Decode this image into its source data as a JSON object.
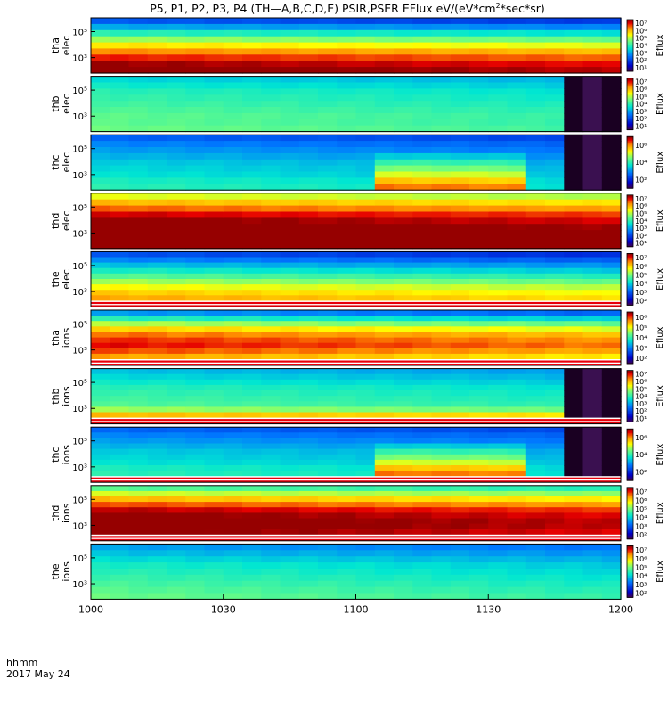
{
  "chart_data": {
    "type": "heatmap",
    "title": "P5, P1, P2, P3, P4 (TH-A,B,C,D,E) PSIR,PSER EFlux eV/(eV*cm²*sec*sr)",
    "title_parts": {
      "prefix": "P5, P1, P2, P3, P4 (TH—A,B,C,D,E) PSIR,PSER EFlux eV/(eV*cm",
      "superscript": "2",
      "suffix": "*sec*sr)"
    },
    "x_axis": {
      "label_line1": "hhmm",
      "label_line2": "2017 May 24",
      "tick_labels": [
        "1000",
        "1030",
        "1100",
        "1130",
        "1200"
      ],
      "range": [
        "10:00",
        "12:00"
      ]
    },
    "colorbar_label": "Eflux",
    "y_scale": "log",
    "panels": [
      {
        "name": "tha elec",
        "line1": "tha",
        "line2": "elec",
        "yticks": [
          "10³",
          "10⁵"
        ],
        "cbar_ticks": [
          "10¹",
          "10²",
          "10³",
          "10⁴",
          "10⁵",
          "10⁶",
          "10⁷"
        ],
        "cbar_range": [
          1,
          7
        ],
        "levels": [
          2.5,
          3.2,
          4.0,
          4.8,
          5.5,
          6.1,
          6.6,
          7.0,
          7.2
        ],
        "dim_after": 1.0,
        "gaps": false
      },
      {
        "name": "thb elec",
        "line1": "thb",
        "line2": "elec",
        "yticks": [
          "10³",
          "10⁵"
        ],
        "cbar_ticks": [
          "10¹",
          "10²",
          "10³",
          "10⁴",
          "10⁵",
          "10⁶",
          "10⁷"
        ],
        "cbar_range": [
          1,
          7
        ],
        "levels": [
          3.6,
          3.8,
          4.0,
          4.1,
          4.2,
          4.3,
          4.4,
          4.4,
          4.5
        ],
        "dim_after": 0.86,
        "gaps": false
      },
      {
        "name": "thc elec",
        "line1": "thc",
        "line2": "elec",
        "yticks": [
          "10³",
          "10⁵"
        ],
        "cbar_ticks": [
          "10²",
          "10⁴",
          "10⁶"
        ],
        "cbar_range": [
          1,
          7
        ],
        "levels": [
          2.6,
          2.9,
          3.1,
          3.3,
          3.5,
          3.6,
          3.7,
          3.9,
          4.0
        ],
        "dim_after": 0.88,
        "gaps": false,
        "bump": [
          0.51,
          0.8,
          2.4
        ]
      },
      {
        "name": "thd elec",
        "line1": "thd",
        "line2": "elec",
        "yticks": [
          "10³",
          "10⁵"
        ],
        "cbar_ticks": [
          "10¹",
          "10²",
          "10³",
          "10⁴",
          "10⁵",
          "10⁶",
          "10⁷"
        ],
        "cbar_range": [
          1,
          7
        ],
        "levels": [
          5.2,
          5.8,
          6.3,
          6.8,
          7.1,
          7.3,
          7.4,
          7.4,
          7.4
        ],
        "dim_after": 1.0,
        "gaps": false
      },
      {
        "name": "the elec",
        "line1": "the",
        "line2": "elec",
        "yticks": [
          "10³",
          "10⁵"
        ],
        "cbar_ticks": [
          "10²",
          "10³",
          "10⁴",
          "10⁵",
          "10⁶",
          "10⁷"
        ],
        "cbar_range": [
          2,
          7
        ],
        "levels": [
          3.2,
          3.6,
          4.0,
          4.4,
          4.8,
          5.2,
          5.6,
          5.9,
          6.1
        ],
        "dim_after": 1.0,
        "gaps": true
      },
      {
        "name": "tha ions",
        "line1": "tha",
        "line2": "ions",
        "yticks": [
          "10³",
          "10⁵"
        ],
        "cbar_ticks": [
          "10²",
          "10³",
          "10⁴",
          "10⁵",
          "10⁶"
        ],
        "cbar_range": [
          2,
          6
        ],
        "levels": [
          3.4,
          4.0,
          4.6,
          5.1,
          5.5,
          5.7,
          5.8,
          5.6,
          5.3
        ],
        "dim_after": 1.0,
        "gaps": true
      },
      {
        "name": "thb ions",
        "line1": "thb",
        "line2": "ions",
        "yticks": [
          "10³",
          "10⁵"
        ],
        "cbar_ticks": [
          "10¹",
          "10²",
          "10³",
          "10⁴",
          "10⁵",
          "10⁶",
          "10⁷"
        ],
        "cbar_range": [
          1,
          7
        ],
        "levels": [
          3.4,
          3.6,
          3.8,
          4.0,
          4.1,
          4.2,
          4.3,
          4.8,
          5.8
        ],
        "dim_after": 0.86,
        "gaps": true
      },
      {
        "name": "thc ions",
        "line1": "thc",
        "line2": "ions",
        "yticks": [
          "10³",
          "10⁵"
        ],
        "cbar_ticks": [
          "10²",
          "10⁴",
          "10⁶"
        ],
        "cbar_range": [
          1,
          7
        ],
        "levels": [
          2.6,
          2.9,
          3.1,
          3.3,
          3.5,
          3.6,
          3.7,
          3.9,
          4.0
        ],
        "dim_after": 0.88,
        "gaps": true,
        "bump": [
          0.51,
          0.8,
          2.4
        ]
      },
      {
        "name": "thd ions",
        "line1": "thd",
        "line2": "ions",
        "yticks": [
          "10³",
          "10⁵"
        ],
        "cbar_ticks": [
          "10²",
          "10³",
          "10⁴",
          "10⁵",
          "10⁶",
          "10⁷"
        ],
        "cbar_range": [
          2,
          7
        ],
        "levels": [
          4.8,
          5.4,
          6.0,
          6.5,
          6.9,
          7.1,
          7.2,
          7.2,
          7.1
        ],
        "dim_after": 1.0,
        "gaps": true
      },
      {
        "name": "the ions",
        "line1": "the",
        "line2": "ions",
        "yticks": [
          "10³",
          "10⁵"
        ],
        "cbar_ticks": [
          "10²",
          "10³",
          "10⁴",
          "10⁵",
          "10⁶",
          "10⁷"
        ],
        "cbar_range": [
          2,
          7
        ],
        "levels": [
          3.8,
          4.0,
          4.2,
          4.4,
          4.5,
          4.6,
          4.7,
          4.8,
          4.9
        ],
        "dim_after": 1.0,
        "gaps": false
      }
    ]
  }
}
